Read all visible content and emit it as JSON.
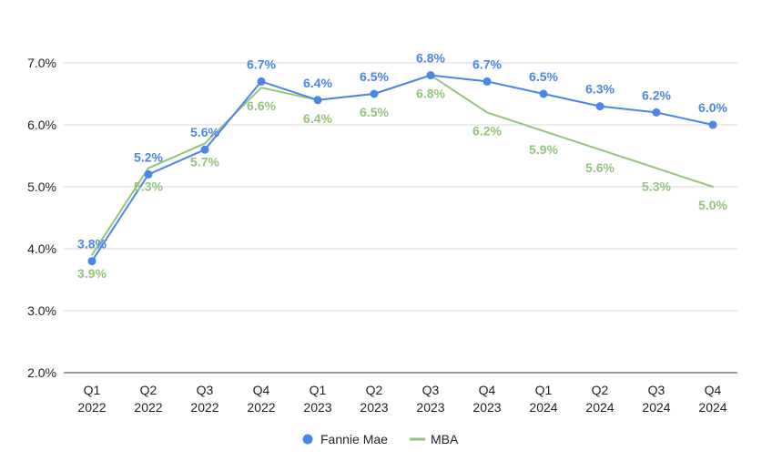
{
  "chart_data": {
    "type": "line",
    "title": "",
    "xlabel": "",
    "ylabel": "",
    "categories": [
      [
        "Q1",
        "2022"
      ],
      [
        "Q2",
        "2022"
      ],
      [
        "Q3",
        "2022"
      ],
      [
        "Q4",
        "2022"
      ],
      [
        "Q1",
        "2023"
      ],
      [
        "Q2",
        "2023"
      ],
      [
        "Q3",
        "2023"
      ],
      [
        "Q4",
        "2023"
      ],
      [
        "Q1",
        "2024"
      ],
      [
        "Q2",
        "2024"
      ],
      [
        "Q3",
        "2024"
      ],
      [
        "Q4",
        "2024"
      ]
    ],
    "ylim": [
      2.0,
      7.0
    ],
    "yticks": [
      2.0,
      3.0,
      4.0,
      5.0,
      6.0,
      7.0
    ],
    "ytick_labels": [
      "2.0%",
      "3.0%",
      "4.0%",
      "5.0%",
      "6.0%",
      "7.0%"
    ],
    "grid": true,
    "legend_position": "bottom",
    "series": [
      {
        "name": "Fannie Mae",
        "color": "#4a86e8",
        "marker": "circle",
        "values": [
          3.8,
          5.2,
          5.6,
          6.7,
          6.4,
          6.5,
          6.8,
          6.7,
          6.5,
          6.3,
          6.2,
          6.0
        ],
        "labels": [
          "3.8%",
          "5.2%",
          "5.6%",
          "6.7%",
          "6.4%",
          "6.5%",
          "6.8%",
          "6.7%",
          "6.5%",
          "6.3%",
          "6.2%",
          "6.0%"
        ],
        "label_position": "above"
      },
      {
        "name": "MBA",
        "color": "#93c47d",
        "marker": "none",
        "values": [
          3.9,
          5.3,
          5.7,
          6.6,
          6.4,
          6.5,
          6.8,
          6.2,
          5.9,
          5.6,
          5.3,
          5.0
        ],
        "labels": [
          "3.9%",
          "5.3%",
          "5.7%",
          "6.6%",
          "6.4%",
          "6.5%",
          "6.8%",
          "6.2%",
          "5.9%",
          "5.6%",
          "5.3%",
          "5.0%"
        ],
        "label_position": "below"
      }
    ]
  }
}
